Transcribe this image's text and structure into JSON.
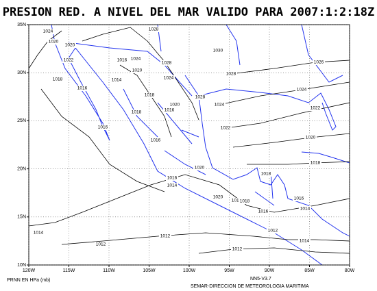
{
  "title": "PRESION RED. A NIVEL DEL MAR VALIDO PARA 2007:1:2:18Z",
  "xticks": [
    {
      "value": -120,
      "label": "120W"
    },
    {
      "value": -115,
      "label": "115W"
    },
    {
      "value": -110,
      "label": "110W"
    },
    {
      "value": -105,
      "label": "105W"
    },
    {
      "value": -100,
      "label": "100W"
    },
    {
      "value": -95,
      "label": "95W"
    },
    {
      "value": -90,
      "label": "90W"
    },
    {
      "value": -85,
      "label": "85W"
    },
    {
      "value": -80,
      "label": "80W"
    }
  ],
  "yticks": [
    {
      "value": 10,
      "label": "10N"
    },
    {
      "value": 15,
      "label": "15N"
    },
    {
      "value": 20,
      "label": "20N"
    },
    {
      "value": 25,
      "label": "25N"
    },
    {
      "value": 30,
      "label": "30N"
    },
    {
      "value": 35,
      "label": "35N"
    }
  ],
  "contour_labels": [
    1024,
    1020,
    1020,
    1028,
    1030,
    1026,
    1022,
    1016,
    1024,
    1028,
    1020,
    1028,
    1018,
    1016,
    1014,
    1024,
    1024,
    1018,
    1028,
    1020,
    1024,
    1022,
    1018,
    1016,
    1016,
    1022,
    1016,
    1020,
    1018,
    1020,
    1018,
    1016,
    1014,
    1020,
    1016,
    1018,
    1016,
    1016,
    1014,
    1014,
    1012,
    1012,
    1012,
    1014,
    1012
  ],
  "footer_left": "PRNN EN HPa (mb)",
  "footer_version": "NN5-V3.7",
  "footer_agency": "SEMAR-DIRECCION DE METEOROLOGIA MARITIMA"
}
